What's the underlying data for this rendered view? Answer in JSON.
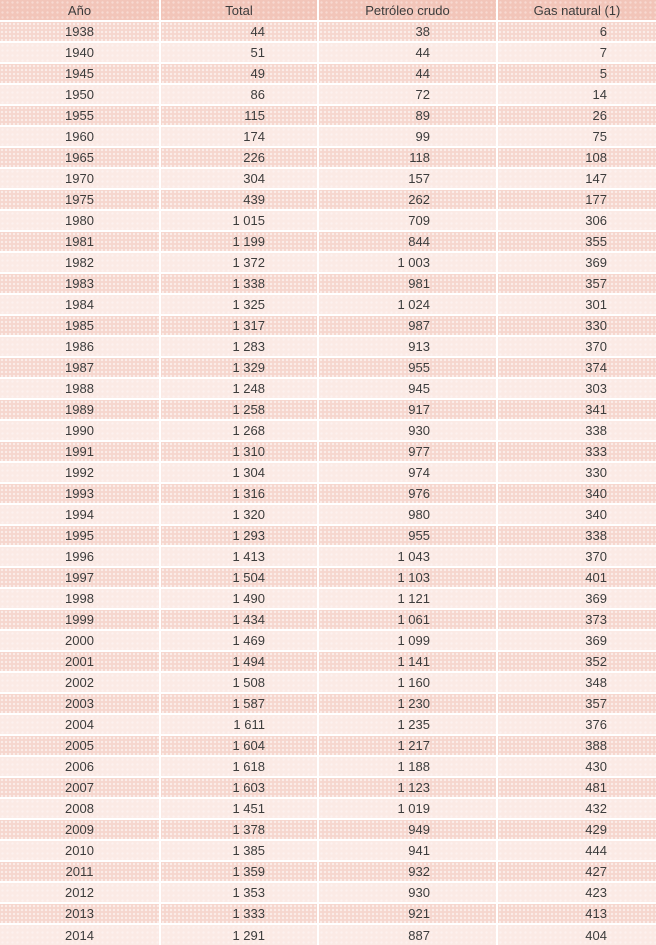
{
  "colors": {
    "header_bg": "#f2c5b9",
    "row_dark": "#f6d6ce",
    "row_light": "#fbeae5",
    "divider": "#ffffff",
    "text": "#3c3c3c"
  },
  "table": {
    "columns": [
      {
        "label": "Año"
      },
      {
        "label": "Total"
      },
      {
        "label": "Petróleo crudo"
      },
      {
        "label": "Gas natural (1)"
      }
    ],
    "rows": [
      [
        "1938",
        "44",
        "38",
        "6"
      ],
      [
        "1940",
        "51",
        "44",
        "7"
      ],
      [
        "1945",
        "49",
        "44",
        "5"
      ],
      [
        "1950",
        "86",
        "72",
        "14"
      ],
      [
        "1955",
        "115",
        "89",
        "26"
      ],
      [
        "1960",
        "174",
        "99",
        "75"
      ],
      [
        "1965",
        "226",
        "118",
        "108"
      ],
      [
        "1970",
        "304",
        "157",
        "147"
      ],
      [
        "1975",
        "439",
        "262",
        "177"
      ],
      [
        "1980",
        "1 015",
        "709",
        "306"
      ],
      [
        "1981",
        "1 199",
        "844",
        "355"
      ],
      [
        "1982",
        "1 372",
        "1 003",
        "369"
      ],
      [
        "1983",
        "1 338",
        "981",
        "357"
      ],
      [
        "1984",
        "1 325",
        "1 024",
        "301"
      ],
      [
        "1985",
        "1 317",
        "987",
        "330"
      ],
      [
        "1986",
        "1 283",
        "913",
        "370"
      ],
      [
        "1987",
        "1 329",
        "955",
        "374"
      ],
      [
        "1988",
        "1 248",
        "945",
        "303"
      ],
      [
        "1989",
        "1 258",
        "917",
        "341"
      ],
      [
        "1990",
        "1 268",
        "930",
        "338"
      ],
      [
        "1991",
        "1 310",
        "977",
        "333"
      ],
      [
        "1992",
        "1 304",
        "974",
        "330"
      ],
      [
        "1993",
        "1 316",
        "976",
        "340"
      ],
      [
        "1994",
        "1 320",
        "980",
        "340"
      ],
      [
        "1995",
        "1 293",
        "955",
        "338"
      ],
      [
        "1996",
        "1 413",
        "1 043",
        "370"
      ],
      [
        "1997",
        "1 504",
        "1 103",
        "401"
      ],
      [
        "1998",
        "1 490",
        "1 121",
        "369"
      ],
      [
        "1999",
        "1 434",
        "1 061",
        "373"
      ],
      [
        "2000",
        "1 469",
        "1 099",
        "369"
      ],
      [
        "2001",
        "1 494",
        "1 141",
        "352"
      ],
      [
        "2002",
        "1 508",
        "1 160",
        "348"
      ],
      [
        "2003",
        "1 587",
        "1 230",
        "357"
      ],
      [
        "2004",
        "1 611",
        "1 235",
        "376"
      ],
      [
        "2005",
        "1 604",
        "1 217",
        "388"
      ],
      [
        "2006",
        "1 618",
        "1 188",
        "430"
      ],
      [
        "2007",
        "1 603",
        "1 123",
        "481"
      ],
      [
        "2008",
        "1 451",
        "1 019",
        "432"
      ],
      [
        "2009",
        "1 378",
        "949",
        "429"
      ],
      [
        "2010",
        "1 385",
        "941",
        "444"
      ],
      [
        "2011",
        "1 359",
        "932",
        "427"
      ],
      [
        "2012",
        "1 353",
        "930",
        "423"
      ],
      [
        "2013",
        "1 333",
        "921",
        "413"
      ],
      [
        "2014",
        "1 291",
        "887",
        "404"
      ]
    ]
  }
}
